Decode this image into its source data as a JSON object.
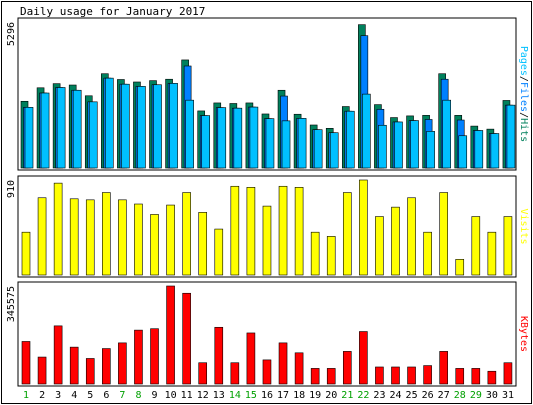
{
  "title": "Daily usage for January 2017",
  "colors": {
    "background": "#ffffff",
    "frame": "#000000",
    "panel_border": "#000000",
    "hits": "#00805c",
    "files": "#0080ff",
    "pages": "#00c0ff",
    "visits": "#ffff00",
    "kbytes": "#ff0000",
    "weekday_label": "#000000",
    "weekend_label": "#00a000"
  },
  "chart_data": [
    {
      "type": "bar",
      "panel": "hits_files_pages",
      "ymax_label": "5296",
      "ymax": 5296,
      "right_label_parts": [
        {
          "text": "Pages",
          "color": "#00c0ff"
        },
        {
          "text": "/",
          "color": "#000000"
        },
        {
          "text": "Files",
          "color": "#0080ff"
        },
        {
          "text": "/",
          "color": "#000000"
        },
        {
          "text": "Hits",
          "color": "#00805c"
        }
      ],
      "categories": [
        "1",
        "2",
        "3",
        "4",
        "5",
        "6",
        "7",
        "8",
        "9",
        "10",
        "11",
        "12",
        "13",
        "14",
        "15",
        "16",
        "17",
        "18",
        "19",
        "20",
        "21",
        "22",
        "23",
        "24",
        "25",
        "26",
        "27",
        "28",
        "29",
        "30",
        "31"
      ],
      "weekend": [
        1,
        7,
        8,
        14,
        15,
        21,
        22,
        28,
        29
      ],
      "series": [
        {
          "name": "Hits",
          "values": [
            2420,
            2910,
            3060,
            3010,
            2620,
            3420,
            3210,
            3120,
            3170,
            3220,
            3920,
            2070,
            2360,
            2340,
            2360,
            1960,
            2820,
            1950,
            1560,
            1440,
            2230,
            5200,
            2300,
            1830,
            1890,
            1910,
            3420,
            1910,
            1520,
            1410,
            2450
          ]
        },
        {
          "name": "Files",
          "values": [
            2200,
            2720,
            2920,
            2820,
            2400,
            3260,
            3040,
            2960,
            3020,
            3070,
            3700,
            1900,
            2190,
            2170,
            2210,
            1790,
            2610,
            1800,
            1390,
            1280,
            2060,
            4800,
            2130,
            1670,
            1720,
            1760,
            3220,
            1740,
            1360,
            1250,
            2280
          ]
        },
        {
          "name": "Pages",
          "values": [
            2200,
            2720,
            2920,
            2820,
            2400,
            3260,
            3040,
            2960,
            3020,
            3070,
            2460,
            1900,
            2190,
            2170,
            2210,
            1790,
            1710,
            1800,
            1390,
            1280,
            2060,
            2680,
            1550,
            1670,
            1720,
            1330,
            2460,
            1170,
            1360,
            1250,
            2280
          ]
        }
      ]
    },
    {
      "type": "bar",
      "panel": "visits",
      "ymax_label": "910",
      "ymax": 910,
      "right_label": "Visits",
      "series": [
        {
          "name": "Visits",
          "values": [
            410,
            740,
            880,
            730,
            720,
            790,
            720,
            680,
            580,
            670,
            790,
            600,
            440,
            850,
            840,
            660,
            850,
            840,
            410,
            370,
            790,
            910,
            560,
            650,
            740,
            410,
            790,
            150,
            560,
            410,
            560
          ]
        }
      ]
    },
    {
      "type": "bar",
      "panel": "kbytes",
      "ymax_label": "345575",
      "ymax": 345575,
      "right_label": "KBytes",
      "series": [
        {
          "name": "KBytes",
          "values": [
            150000,
            95000,
            205000,
            130000,
            90000,
            125000,
            145000,
            190000,
            195000,
            345575,
            320000,
            75000,
            200000,
            75000,
            180000,
            85000,
            145000,
            110000,
            55000,
            55000,
            115000,
            185000,
            60000,
            60000,
            60000,
            65000,
            115000,
            55000,
            55000,
            45000,
            75000
          ]
        }
      ]
    }
  ]
}
